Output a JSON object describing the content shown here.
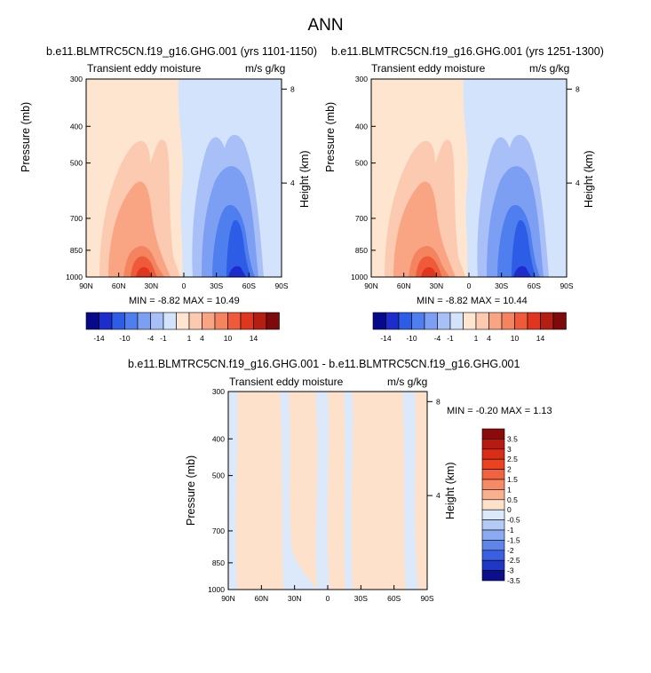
{
  "page": {
    "title": "ANN"
  },
  "colors": {
    "n14": "#08088a",
    "n10": "#1f2ccc",
    "n7": "#2d5ce6",
    "n4": "#4f7eee",
    "n2": "#7d9ff3",
    "n1": "#a8c0f7",
    "n05": "#d2e3fb",
    "p05": "#fde5d0",
    "p1": "#fccab0",
    "p2": "#f9a584",
    "p4": "#f4835f",
    "p7": "#ee5a3a",
    "p10": "#e0351f",
    "p14": "#b51e13",
    "p18": "#7d0b0b"
  },
  "chart_data": [
    {
      "type": "contour",
      "title": "b.e11.BLMTRC5CN.f19_g16.GHG.001 (yrs 1101-1150)",
      "left_string": "Transient eddy moisture",
      "right_string": "m/s g/kg",
      "xlabel": "",
      "ylabel": "Pressure (mb)",
      "right_ylabel": "Height (km)",
      "x_ticks": [
        "90N",
        "60N",
        "30N",
        "0",
        "30S",
        "60S",
        "90S"
      ],
      "y_ticks": [
        "300",
        "400",
        "500",
        "700",
        "850",
        "1000"
      ],
      "right_ticks": [
        "8",
        "4"
      ],
      "min_label": "MIN = -8.82  MAX = 10.49",
      "min": -8.82,
      "max": 10.49
    },
    {
      "type": "contour",
      "title": "b.e11.BLMTRC5CN.f19_g16.GHG.001 (yrs 1251-1300)",
      "left_string": "Transient eddy moisture",
      "right_string": "m/s g/kg",
      "xlabel": "",
      "ylabel": "Pressure (mb)",
      "right_ylabel": "Height (km)",
      "x_ticks": [
        "90N",
        "60N",
        "30N",
        "0",
        "30S",
        "60S",
        "90S"
      ],
      "y_ticks": [
        "300",
        "400",
        "500",
        "700",
        "850",
        "1000"
      ],
      "right_ticks": [
        "8",
        "4"
      ],
      "min_label": "MIN = -8.82  MAX = 10.44",
      "min": -8.82,
      "max": 10.44
    },
    {
      "type": "contour",
      "title": "b.e11.BLMTRC5CN.f19_g16.GHG.001 - b.e11.BLMTRC5CN.f19_g16.GHG.001",
      "left_string": "Transient eddy moisture",
      "right_string": "m/s g/kg",
      "xlabel": "",
      "ylabel": "Pressure (mb)",
      "right_ylabel": "Height (km)",
      "x_ticks": [
        "90N",
        "60N",
        "30N",
        "0",
        "30S",
        "60S",
        "90S"
      ],
      "y_ticks": [
        "300",
        "400",
        "500",
        "700",
        "850",
        "1000"
      ],
      "right_ticks": [
        "8",
        "4"
      ],
      "min_label": "MIN = -0.20  MAX =  1.13",
      "min": -0.2,
      "max": 1.13
    }
  ],
  "colorbar_top": {
    "labels": [
      "-14",
      "-10",
      "-4",
      "-1",
      "1",
      "4",
      "10",
      "14"
    ],
    "color_keys": [
      "n14",
      "n10",
      "n7",
      "n4",
      "n2",
      "n1",
      "n05",
      "p05",
      "p1",
      "p2",
      "p4",
      "p7",
      "p10",
      "p14",
      "p18"
    ]
  },
  "colorbar_diff": {
    "labels": [
      "3.5",
      "3",
      "2.5",
      "2",
      "1.5",
      "1",
      "0.5",
      "0",
      "-0.5",
      "-1",
      "-1.5",
      "-2",
      "-2.5",
      "-3",
      "-3.5"
    ],
    "colors": [
      "#8b0a0a",
      "#b81a10",
      "#d92d17",
      "#e9441f",
      "#f1633e",
      "#f58a64",
      "#f8b08f",
      "#fde1cb",
      "#dce9fa",
      "#b4cbf6",
      "#8aaaf1",
      "#5f85ea",
      "#3a5fe0",
      "#2037c4",
      "#0c0f8c"
    ]
  }
}
